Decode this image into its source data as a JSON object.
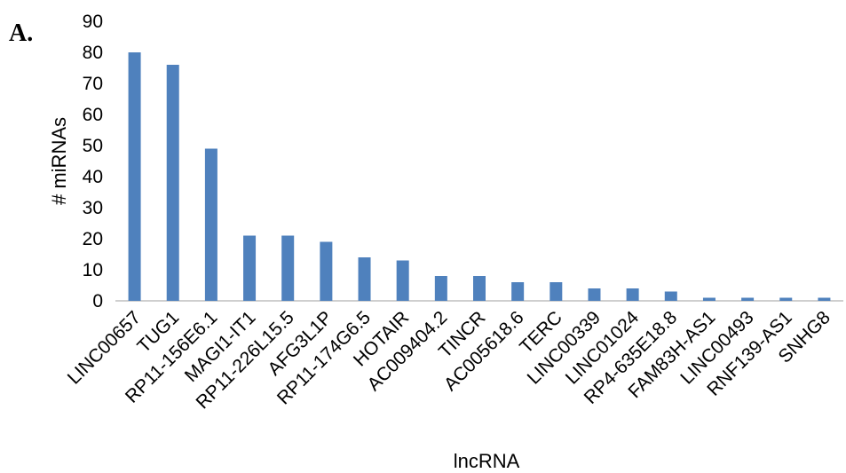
{
  "panel_label": "A.",
  "chart_data": {
    "type": "bar",
    "title": "",
    "xlabel": "lncRNA",
    "ylabel": "# miRNAs",
    "ylim": [
      0,
      90
    ],
    "yticks": [
      0,
      10,
      20,
      30,
      40,
      50,
      60,
      70,
      80,
      90
    ],
    "grid": false,
    "bar_color": "#4f81bd",
    "categories": [
      "LINC00657",
      "TUG1",
      "RP11-156E6.1",
      "MAGI1-IT1",
      "RP11-226L15.5",
      "AFG3L1P",
      "RP11-174G6.5",
      "HOTAIR",
      "AC009404.2",
      "TINCR",
      "AC005618.6",
      "TERC",
      "LINC00339",
      "LINC01024",
      "RP4-635E18.8",
      "FAM83H-AS1",
      "LINC00493",
      "RNF139-AS1",
      "SNHG8"
    ],
    "values": [
      80,
      76,
      49,
      21,
      21,
      19,
      14,
      13,
      8,
      8,
      6,
      6,
      4,
      4,
      3,
      1,
      1,
      1,
      1
    ]
  }
}
